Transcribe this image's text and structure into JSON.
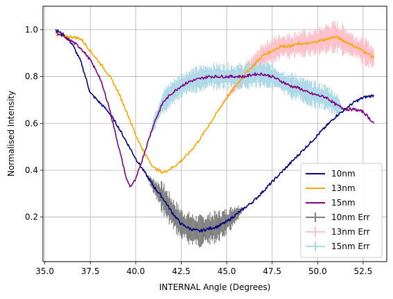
{
  "chart_data": {
    "type": "line",
    "xlabel": "INTERNAL Angle (Degrees)",
    "ylabel": "Normalised Intensity",
    "xlim": [
      34.9,
      53.8
    ],
    "ylim": [
      0.01,
      1.1
    ],
    "xticks": [
      35.0,
      37.5,
      40.0,
      42.5,
      45.0,
      47.5,
      50.0,
      52.5
    ],
    "xtick_labels": [
      "35.0",
      "37.5",
      "40.0",
      "42.5",
      "45.0",
      "47.5",
      "50.0",
      "52.5"
    ],
    "yticks": [
      0.2,
      0.4,
      0.6,
      0.8,
      1.0
    ],
    "ytick_labels": [
      "0.2",
      "0.4",
      "0.6",
      "0.8",
      "1.0"
    ],
    "grid": true,
    "legend_position": "lower-right",
    "series": [
      {
        "name": "10nm",
        "color": "#000080",
        "error_name": "10nm Err",
        "error_color": "#808080",
        "x": [
          35.6,
          36.0,
          36.5,
          37.0,
          37.5,
          38.0,
          38.5,
          39.0,
          39.5,
          40.0,
          40.5,
          41.0,
          41.5,
          42.0,
          42.5,
          43.0,
          43.5,
          44.0,
          44.5,
          45.0,
          45.5,
          46.0,
          46.5,
          47.0,
          47.5,
          48.0,
          48.5,
          49.0,
          49.5,
          50.0,
          50.5,
          51.0,
          51.5,
          52.0,
          52.5,
          53.1
        ],
        "y": [
          1.0,
          0.98,
          0.94,
          0.86,
          0.73,
          0.69,
          0.65,
          0.59,
          0.52,
          0.45,
          0.39,
          0.33,
          0.28,
          0.22,
          0.17,
          0.15,
          0.14,
          0.15,
          0.16,
          0.18,
          0.21,
          0.24,
          0.27,
          0.31,
          0.35,
          0.39,
          0.43,
          0.47,
          0.51,
          0.55,
          0.59,
          0.63,
          0.66,
          0.69,
          0.71,
          0.72
        ],
        "err": [
          0,
          0,
          0,
          0,
          0,
          0,
          0,
          0,
          0,
          0,
          0,
          0.03,
          0.06,
          0.06,
          0.06,
          0.06,
          0.06,
          0.06,
          0.06,
          0.05,
          0.04,
          0,
          0,
          0,
          0,
          0,
          0,
          0,
          0,
          0,
          0,
          0,
          0,
          0,
          0,
          0
        ]
      },
      {
        "name": "13nm",
        "color": "#FFA500",
        "error_name": "13nm Err",
        "error_color": "#FFC0CB",
        "x": [
          35.6,
          36.0,
          36.5,
          37.0,
          37.5,
          38.0,
          38.5,
          39.0,
          39.5,
          40.0,
          40.5,
          41.0,
          41.5,
          42.0,
          42.5,
          43.0,
          43.5,
          44.0,
          44.5,
          45.0,
          45.5,
          46.0,
          46.5,
          47.0,
          47.5,
          48.0,
          48.5,
          49.0,
          49.5,
          50.0,
          50.5,
          51.0,
          51.5,
          52.0,
          52.5,
          53.1
        ],
        "y": [
          0.98,
          0.97,
          0.97,
          0.96,
          0.91,
          0.86,
          0.81,
          0.74,
          0.65,
          0.55,
          0.47,
          0.41,
          0.39,
          0.41,
          0.44,
          0.48,
          0.53,
          0.59,
          0.65,
          0.71,
          0.76,
          0.81,
          0.85,
          0.89,
          0.91,
          0.93,
          0.93,
          0.94,
          0.94,
          0.95,
          0.96,
          0.97,
          0.95,
          0.93,
          0.91,
          0.88
        ],
        "err": [
          0,
          0,
          0,
          0,
          0,
          0,
          0,
          0,
          0,
          0,
          0,
          0,
          0,
          0,
          0,
          0,
          0,
          0,
          0,
          0.01,
          0.02,
          0.04,
          0.04,
          0.05,
          0.05,
          0.05,
          0.05,
          0.05,
          0.05,
          0.05,
          0.06,
          0.06,
          0.06,
          0.05,
          0.05,
          0.05
        ]
      },
      {
        "name": "15nm",
        "color": "#800080",
        "error_name": "15nm Err",
        "error_color": "#ADD8E6",
        "x": [
          35.6,
          36.0,
          36.5,
          37.0,
          37.5,
          38.0,
          38.5,
          39.0,
          39.5,
          39.7,
          40.0,
          40.5,
          41.0,
          41.5,
          42.0,
          42.5,
          43.0,
          43.5,
          44.0,
          44.5,
          45.0,
          45.5,
          46.0,
          46.5,
          47.0,
          47.5,
          48.0,
          48.5,
          49.0,
          49.5,
          50.0,
          50.5,
          51.0,
          51.5,
          52.0,
          52.5,
          53.1
        ],
        "y": [
          0.99,
          0.97,
          0.95,
          0.92,
          0.87,
          0.8,
          0.68,
          0.52,
          0.36,
          0.33,
          0.36,
          0.48,
          0.6,
          0.69,
          0.73,
          0.76,
          0.78,
          0.79,
          0.8,
          0.8,
          0.8,
          0.8,
          0.8,
          0.81,
          0.81,
          0.8,
          0.78,
          0.76,
          0.75,
          0.73,
          0.72,
          0.71,
          0.68,
          0.66,
          0.66,
          0.65,
          0.6
        ],
        "err": [
          0,
          0,
          0,
          0,
          0,
          0,
          0,
          0,
          0,
          0,
          0,
          0,
          0.03,
          0.05,
          0.05,
          0.05,
          0.05,
          0.05,
          0.05,
          0.05,
          0.05,
          0.05,
          0.05,
          0.05,
          0.05,
          0.05,
          0.05,
          0.05,
          0.05,
          0.05,
          0.05,
          0.05,
          0.05,
          0,
          0,
          0,
          0
        ]
      }
    ]
  }
}
